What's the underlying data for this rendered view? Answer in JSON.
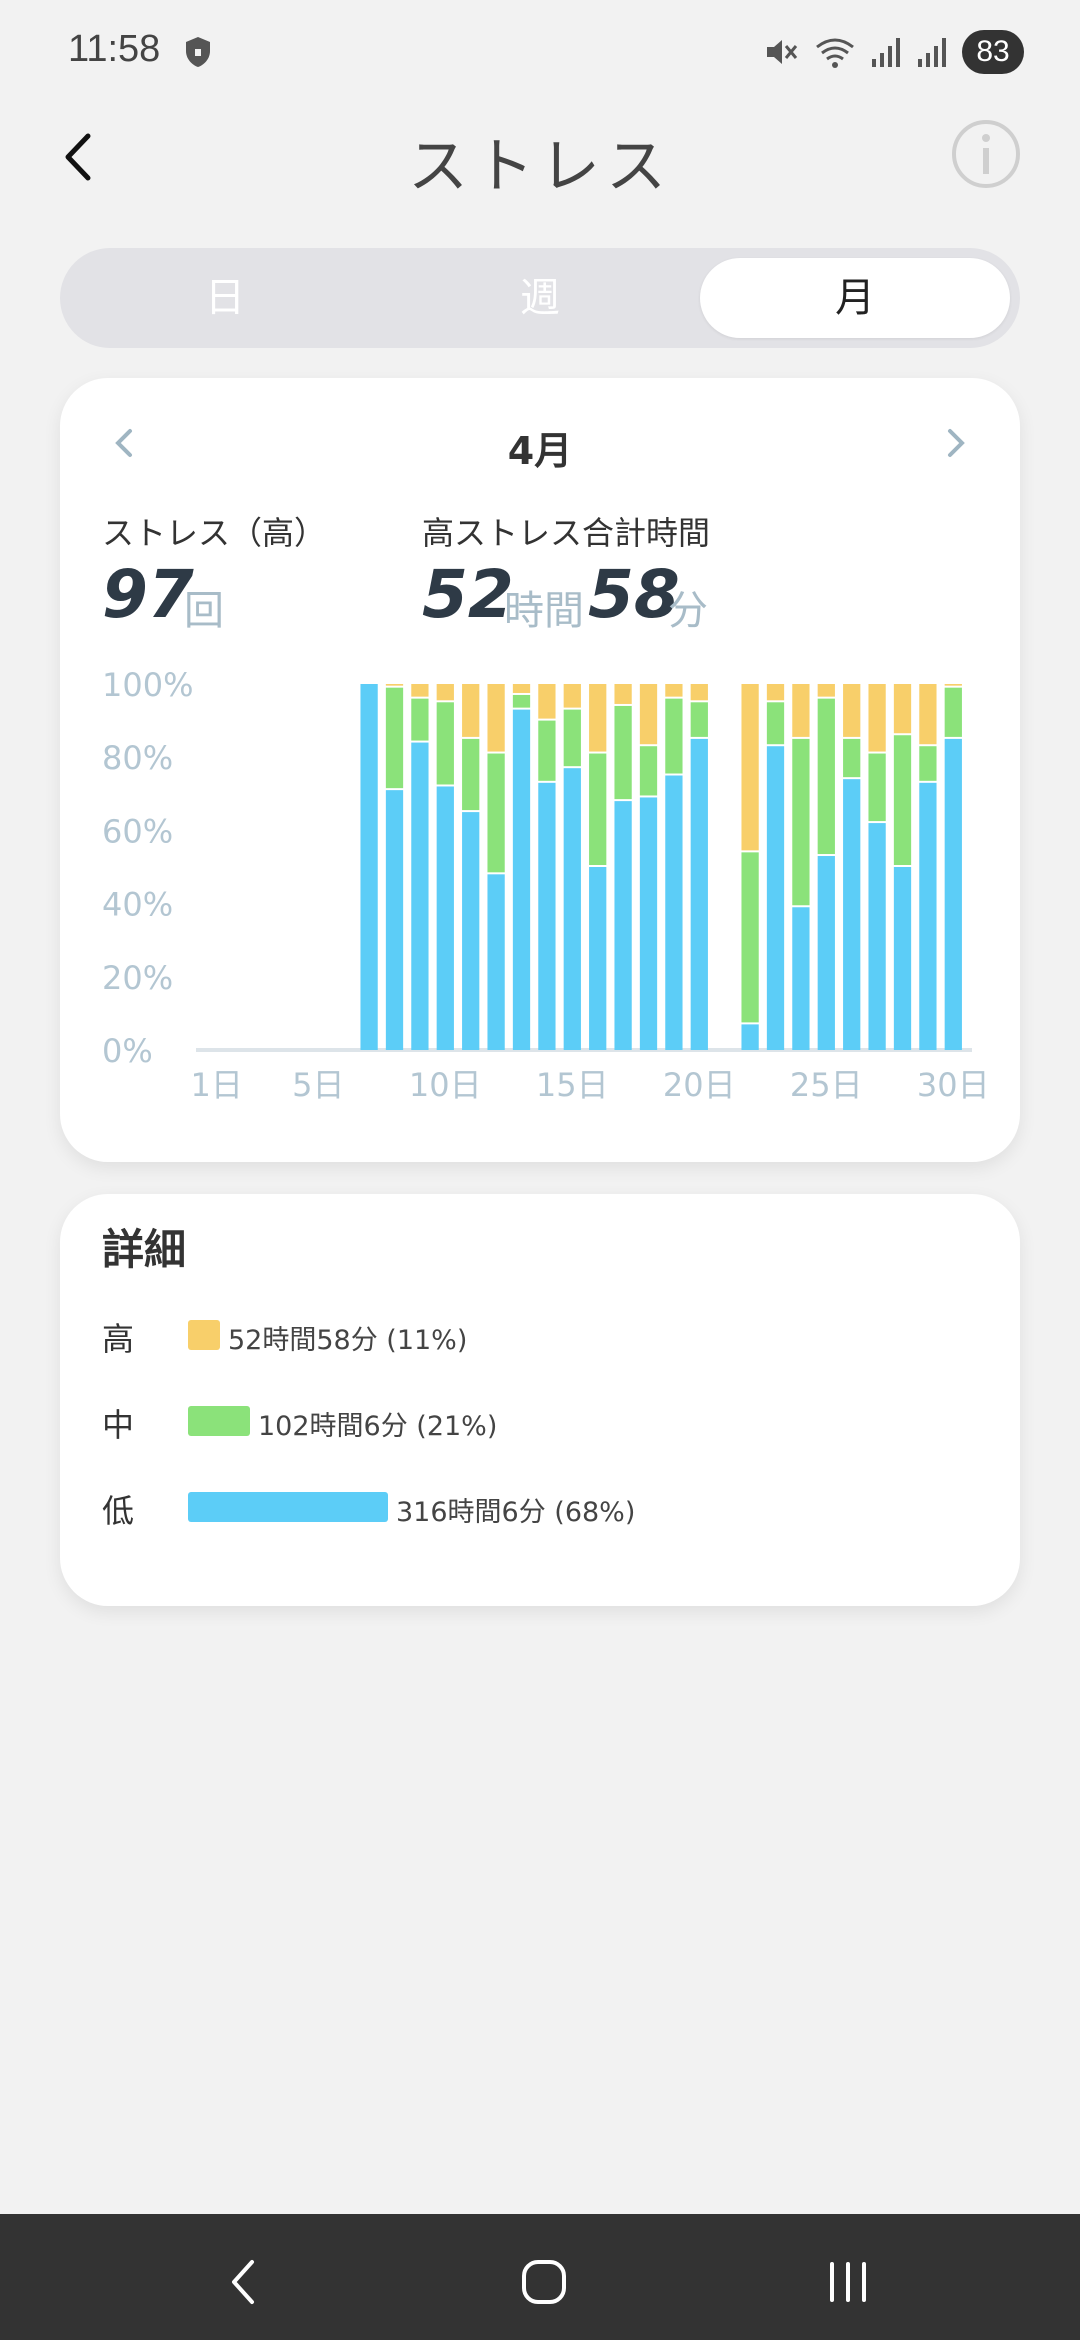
{
  "status_bar": {
    "time": "11:58",
    "battery": "83",
    "icons": [
      "shield-icon",
      "mute-icon",
      "wifi-icon",
      "signal-icon",
      "signal-icon"
    ]
  },
  "header": {
    "title": "ストレス",
    "back_icon": "chevron-left-icon",
    "info_icon": "info-icon"
  },
  "tabs": [
    {
      "label": "日",
      "active": false
    },
    {
      "label": "週",
      "active": false
    },
    {
      "label": "月",
      "active": true
    }
  ],
  "summary": {
    "month": "4月",
    "high_stress_label": "ストレス（高）",
    "high_stress_count": "97",
    "count_unit": "回",
    "total_label": "高ストレス合計時間",
    "total_hours": "52",
    "hours_unit": "時間",
    "total_minutes": "58",
    "minutes_unit": "分"
  },
  "chart_data": {
    "type": "bar",
    "stacked": true,
    "y_ticks": [
      "100%",
      "80%",
      "60%",
      "40%",
      "20%",
      "0%"
    ],
    "x_ticks": [
      "1日",
      "5日",
      "10日",
      "15日",
      "20日",
      "25日",
      "30日"
    ],
    "x_tick_days": [
      1,
      5,
      10,
      15,
      20,
      25,
      30
    ],
    "ylim": [
      0,
      100
    ],
    "days": 30,
    "colors": {
      "low": "#5ccdf7",
      "mid": "#8be27a",
      "high": "#f8cf6a"
    },
    "series": [
      {
        "key": "low",
        "name": "低",
        "values": [
          null,
          null,
          null,
          null,
          null,
          null,
          100,
          71,
          84,
          72,
          65,
          48,
          93,
          73,
          77,
          50,
          68,
          69,
          75,
          85,
          null,
          7,
          83,
          39,
          53,
          74,
          62,
          50,
          73,
          85
        ]
      },
      {
        "key": "mid",
        "name": "中",
        "values": [
          null,
          null,
          null,
          null,
          null,
          null,
          0,
          28,
          12,
          23,
          20,
          33,
          4,
          17,
          16,
          31,
          26,
          14,
          21,
          10,
          null,
          47,
          12,
          46,
          43,
          11,
          19,
          36,
          10,
          14
        ]
      },
      {
        "key": "high",
        "name": "高",
        "values": [
          null,
          null,
          null,
          null,
          null,
          null,
          0,
          1,
          4,
          5,
          15,
          19,
          3,
          10,
          7,
          19,
          6,
          17,
          4,
          5,
          null,
          46,
          5,
          15,
          4,
          15,
          19,
          14,
          17,
          1
        ]
      }
    ]
  },
  "details": {
    "title": "詳細",
    "rows": [
      {
        "key": "高",
        "text": "52時間58分 (11%)",
        "color": "#f8cf6a",
        "share": 11
      },
      {
        "key": "中",
        "text": "102時間6分 (21%)",
        "color": "#8be27a",
        "share": 21
      },
      {
        "key": "低",
        "text": "316時間6分 (68%)",
        "color": "#5ccdf7",
        "share": 68
      }
    ]
  },
  "nav_bar": {
    "icons": [
      "nav-back-icon",
      "nav-home-icon",
      "nav-recents-icon"
    ]
  }
}
